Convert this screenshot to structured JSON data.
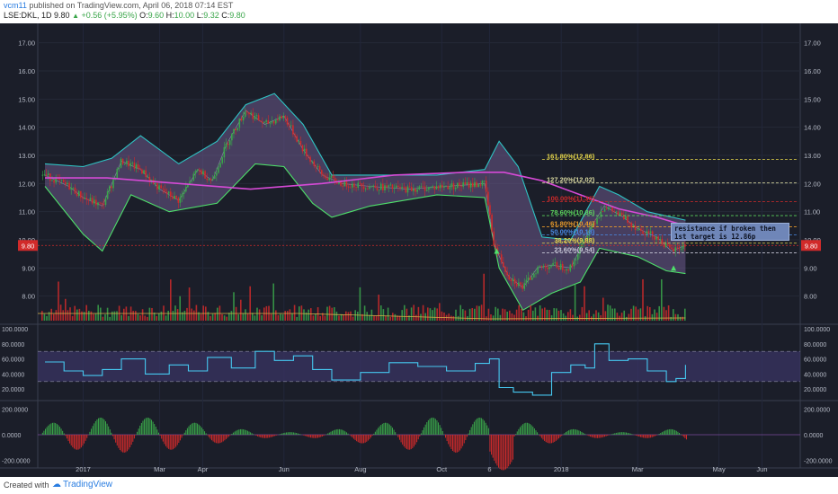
{
  "header": {
    "author": "vcm11",
    "published": "published on TradingView.com, April 06, 2018 07:14 EST",
    "symbol": "LSE:DKL, 1D",
    "last": "9.80",
    "change_caret": "▲",
    "change": "+0.56 (+5.95%)",
    "o_label": "O:",
    "o": "9.60",
    "h_label": "H:",
    "h": "10.00",
    "l_label": "L:",
    "l": "9.32",
    "c_label": "C:",
    "c": "9.80"
  },
  "footer": {
    "created": "Created with",
    "brand": "TradingView"
  },
  "annotation": {
    "text": "resistance if broken then 1st target is 12.86p"
  },
  "colors": {
    "bg": "#1b1e29",
    "up": "#3aa64a",
    "down": "#d12a2a",
    "bb": "#2ec4c4",
    "bb_fill": "#6b5a8c",
    "ma": "#d64ad6",
    "rsi": "#46c8f0",
    "volume_ma": "#d7b34a"
  },
  "chart_data": [
    {
      "type": "candlestick",
      "panel": "price",
      "y_ticks": [
        "17.00",
        "16.00",
        "15.00",
        "14.00",
        "13.00",
        "12.00",
        "11.00",
        "10.00",
        "9.00",
        "8.00"
      ],
      "ylim": [
        7.0,
        17.5
      ],
      "x_ticks": [
        "2017",
        "Mar",
        "Apr",
        "Jun",
        "Aug",
        "Oct",
        "6",
        "2018",
        "Mar",
        "May",
        "Jun"
      ],
      "last_price_label": "9.80",
      "fib_levels": [
        {
          "label": "161.80%(12.86)",
          "value": 12.86,
          "color": "#e8d84a"
        },
        {
          "label": "127.20%(12.02)",
          "value": 12.02,
          "color": "#d9d9a0"
        },
        {
          "label": "100.00%(11.36)",
          "value": 11.36,
          "color": "#d12a2a"
        },
        {
          "label": "78.60%(10.86)",
          "value": 10.86,
          "color": "#5cd65c"
        },
        {
          "label": "61.80%(10.46)",
          "value": 10.46,
          "color": "#e89a2a"
        },
        {
          "label": "50.00%(10.18)",
          "value": 10.18,
          "color": "#4a8be8"
        },
        {
          "label": "38.20%(9.88)",
          "value": 9.88,
          "color": "#e8d84a"
        },
        {
          "label": "23.60%(9.54)",
          "value": 9.54,
          "color": "#c8c8d8"
        }
      ],
      "price_path": [
        [
          2016.92,
          12.3
        ],
        [
          2016.97,
          11.9
        ],
        [
          2017.0,
          11.5
        ],
        [
          2017.04,
          11.2
        ],
        [
          2017.08,
          12.8
        ],
        [
          2017.12,
          12.5
        ],
        [
          2017.16,
          11.8
        ],
        [
          2017.2,
          11.4
        ],
        [
          2017.24,
          12.5
        ],
        [
          2017.27,
          12.1
        ],
        [
          2017.3,
          13.4
        ],
        [
          2017.34,
          14.6
        ],
        [
          2017.38,
          14.1
        ],
        [
          2017.42,
          14.4
        ],
        [
          2017.46,
          13.2
        ],
        [
          2017.5,
          12.3
        ],
        [
          2017.54,
          12.0
        ],
        [
          2017.6,
          11.9
        ],
        [
          2017.68,
          11.8
        ],
        [
          2017.76,
          11.9
        ],
        [
          2017.84,
          12.0
        ],
        [
          2017.86,
          9.8
        ],
        [
          2017.89,
          8.7
        ],
        [
          2017.92,
          8.3
        ],
        [
          2017.95,
          9.0
        ],
        [
          2017.98,
          9.1
        ],
        [
          2018.02,
          9.0
        ],
        [
          2018.06,
          10.4
        ],
        [
          2018.09,
          11.2
        ],
        [
          2018.13,
          10.8
        ],
        [
          2018.16,
          10.4
        ],
        [
          2018.2,
          10.1
        ],
        [
          2018.23,
          9.6
        ],
        [
          2018.26,
          9.8
        ]
      ],
      "ma_path": [
        [
          2016.92,
          12.2
        ],
        [
          2017.05,
          12.2
        ],
        [
          2017.2,
          12.0
        ],
        [
          2017.35,
          11.8
        ],
        [
          2017.5,
          12.0
        ],
        [
          2017.65,
          12.3
        ],
        [
          2017.8,
          12.4
        ],
        [
          2017.88,
          12.4
        ],
        [
          2017.96,
          12.1
        ],
        [
          2018.04,
          11.6
        ],
        [
          2018.12,
          11.1
        ],
        [
          2018.2,
          10.8
        ],
        [
          2018.26,
          10.5
        ]
      ],
      "bb_upper": [
        [
          2016.92,
          12.7
        ],
        [
          2017.0,
          12.6
        ],
        [
          2017.06,
          12.9
        ],
        [
          2017.12,
          13.7
        ],
        [
          2017.2,
          12.7
        ],
        [
          2017.28,
          13.5
        ],
        [
          2017.34,
          14.8
        ],
        [
          2017.4,
          15.2
        ],
        [
          2017.46,
          14.1
        ],
        [
          2017.52,
          12.3
        ],
        [
          2017.62,
          12.3
        ],
        [
          2017.74,
          12.3
        ],
        [
          2017.84,
          12.5
        ],
        [
          2017.87,
          13.5
        ],
        [
          2017.91,
          12.6
        ],
        [
          2017.96,
          10.1
        ],
        [
          2018.02,
          10.0
        ],
        [
          2018.08,
          11.9
        ],
        [
          2018.12,
          11.6
        ],
        [
          2018.18,
          11.0
        ],
        [
          2018.26,
          10.7
        ]
      ],
      "bb_lower": [
        [
          2016.92,
          11.9
        ],
        [
          2017.0,
          10.2
        ],
        [
          2017.04,
          9.6
        ],
        [
          2017.1,
          11.6
        ],
        [
          2017.18,
          11.0
        ],
        [
          2017.28,
          11.3
        ],
        [
          2017.36,
          12.7
        ],
        [
          2017.42,
          12.6
        ],
        [
          2017.48,
          11.3
        ],
        [
          2017.52,
          10.8
        ],
        [
          2017.6,
          11.2
        ],
        [
          2017.74,
          11.6
        ],
        [
          2017.84,
          11.5
        ],
        [
          2017.87,
          9.0
        ],
        [
          2017.92,
          7.5
        ],
        [
          2017.98,
          8.1
        ],
        [
          2018.04,
          8.5
        ],
        [
          2018.08,
          9.7
        ],
        [
          2018.16,
          9.4
        ],
        [
          2018.22,
          8.9
        ],
        [
          2018.26,
          8.8
        ]
      ]
    },
    {
      "type": "line",
      "panel": "rsi",
      "y_ticks": [
        "100.0000",
        "80.0000",
        "60.0000",
        "40.0000",
        "20.0000"
      ],
      "ylim": [
        0,
        100
      ],
      "bands": [
        30,
        70
      ],
      "series": [
        {
          "x": [
            2016.92,
            2016.96,
            2017.0,
            2017.04,
            2017.08,
            2017.13,
            2017.18,
            2017.22,
            2017.26,
            2017.31,
            2017.36,
            2017.4,
            2017.44,
            2017.48,
            2017.52,
            2017.58,
            2017.64,
            2017.7,
            2017.76,
            2017.82,
            2017.85,
            2017.87,
            2017.9,
            2017.94,
            2017.98,
            2018.02,
            2018.05,
            2018.07,
            2018.1,
            2018.14,
            2018.18,
            2018.22,
            2018.24,
            2018.26
          ],
          "values": [
            56,
            44,
            38,
            46,
            60,
            40,
            52,
            44,
            62,
            48,
            70,
            58,
            64,
            46,
            32,
            42,
            55,
            50,
            44,
            54,
            60,
            22,
            16,
            12,
            42,
            52,
            48,
            80,
            58,
            60,
            44,
            30,
            34,
            52
          ]
        }
      ]
    },
    {
      "type": "bar",
      "panel": "oscillator",
      "y_ticks": [
        "200.0000",
        "0.0000",
        "-200.0000"
      ],
      "ylim": [
        -260,
        260
      ]
    }
  ]
}
